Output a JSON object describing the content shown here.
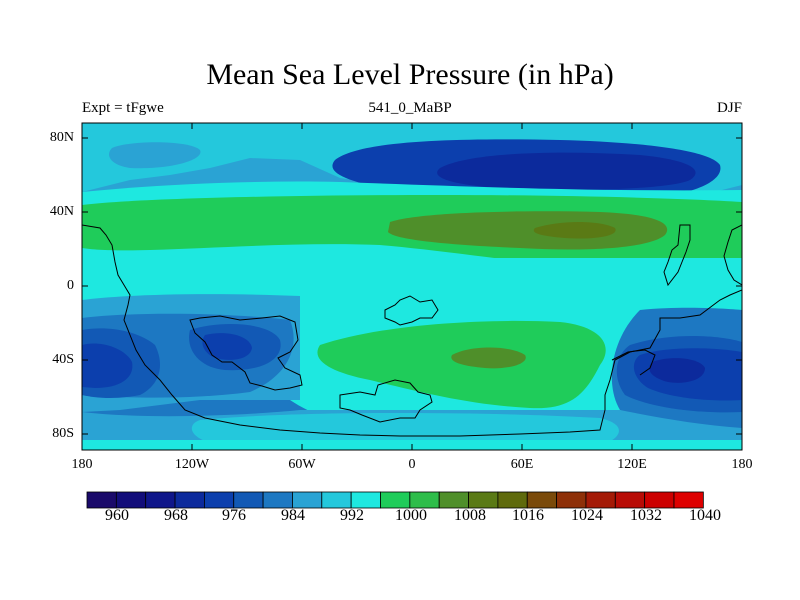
{
  "title": "Mean Sea Level Pressure (in hPa)",
  "left_string": "Expt = tFgwe",
  "center_string": "541_0_MaBP",
  "right_string": "DJF",
  "map": {
    "lon_labels": [
      "180",
      "120W",
      "60W",
      "0",
      "60E",
      "120E",
      "180"
    ],
    "lat_labels": [
      "80N",
      "40N",
      "0",
      "40S",
      "80S"
    ]
  },
  "colorbar": {
    "labels": [
      "960",
      "968",
      "976",
      "984",
      "992",
      "1000",
      "1008",
      "1016",
      "1024",
      "1032",
      "1040"
    ],
    "colors": [
      "#1a0a6a",
      "#120d7a",
      "#0f168a",
      "#0c2a9c",
      "#0c3fad",
      "#1259b5",
      "#1d78c2",
      "#2aa3d4",
      "#24c8dc",
      "#1ee8e0",
      "#1fcc5a",
      "#2ebd4a",
      "#4f8f2a",
      "#5a7a15",
      "#5f6a0c",
      "#7a4a0a",
      "#8e3008",
      "#a41a06",
      "#b80c06",
      "#cc0000",
      "#de0000"
    ]
  },
  "colors": {
    "background": "#ffffff",
    "frame": "#000000",
    "coastline": "#000000"
  }
}
